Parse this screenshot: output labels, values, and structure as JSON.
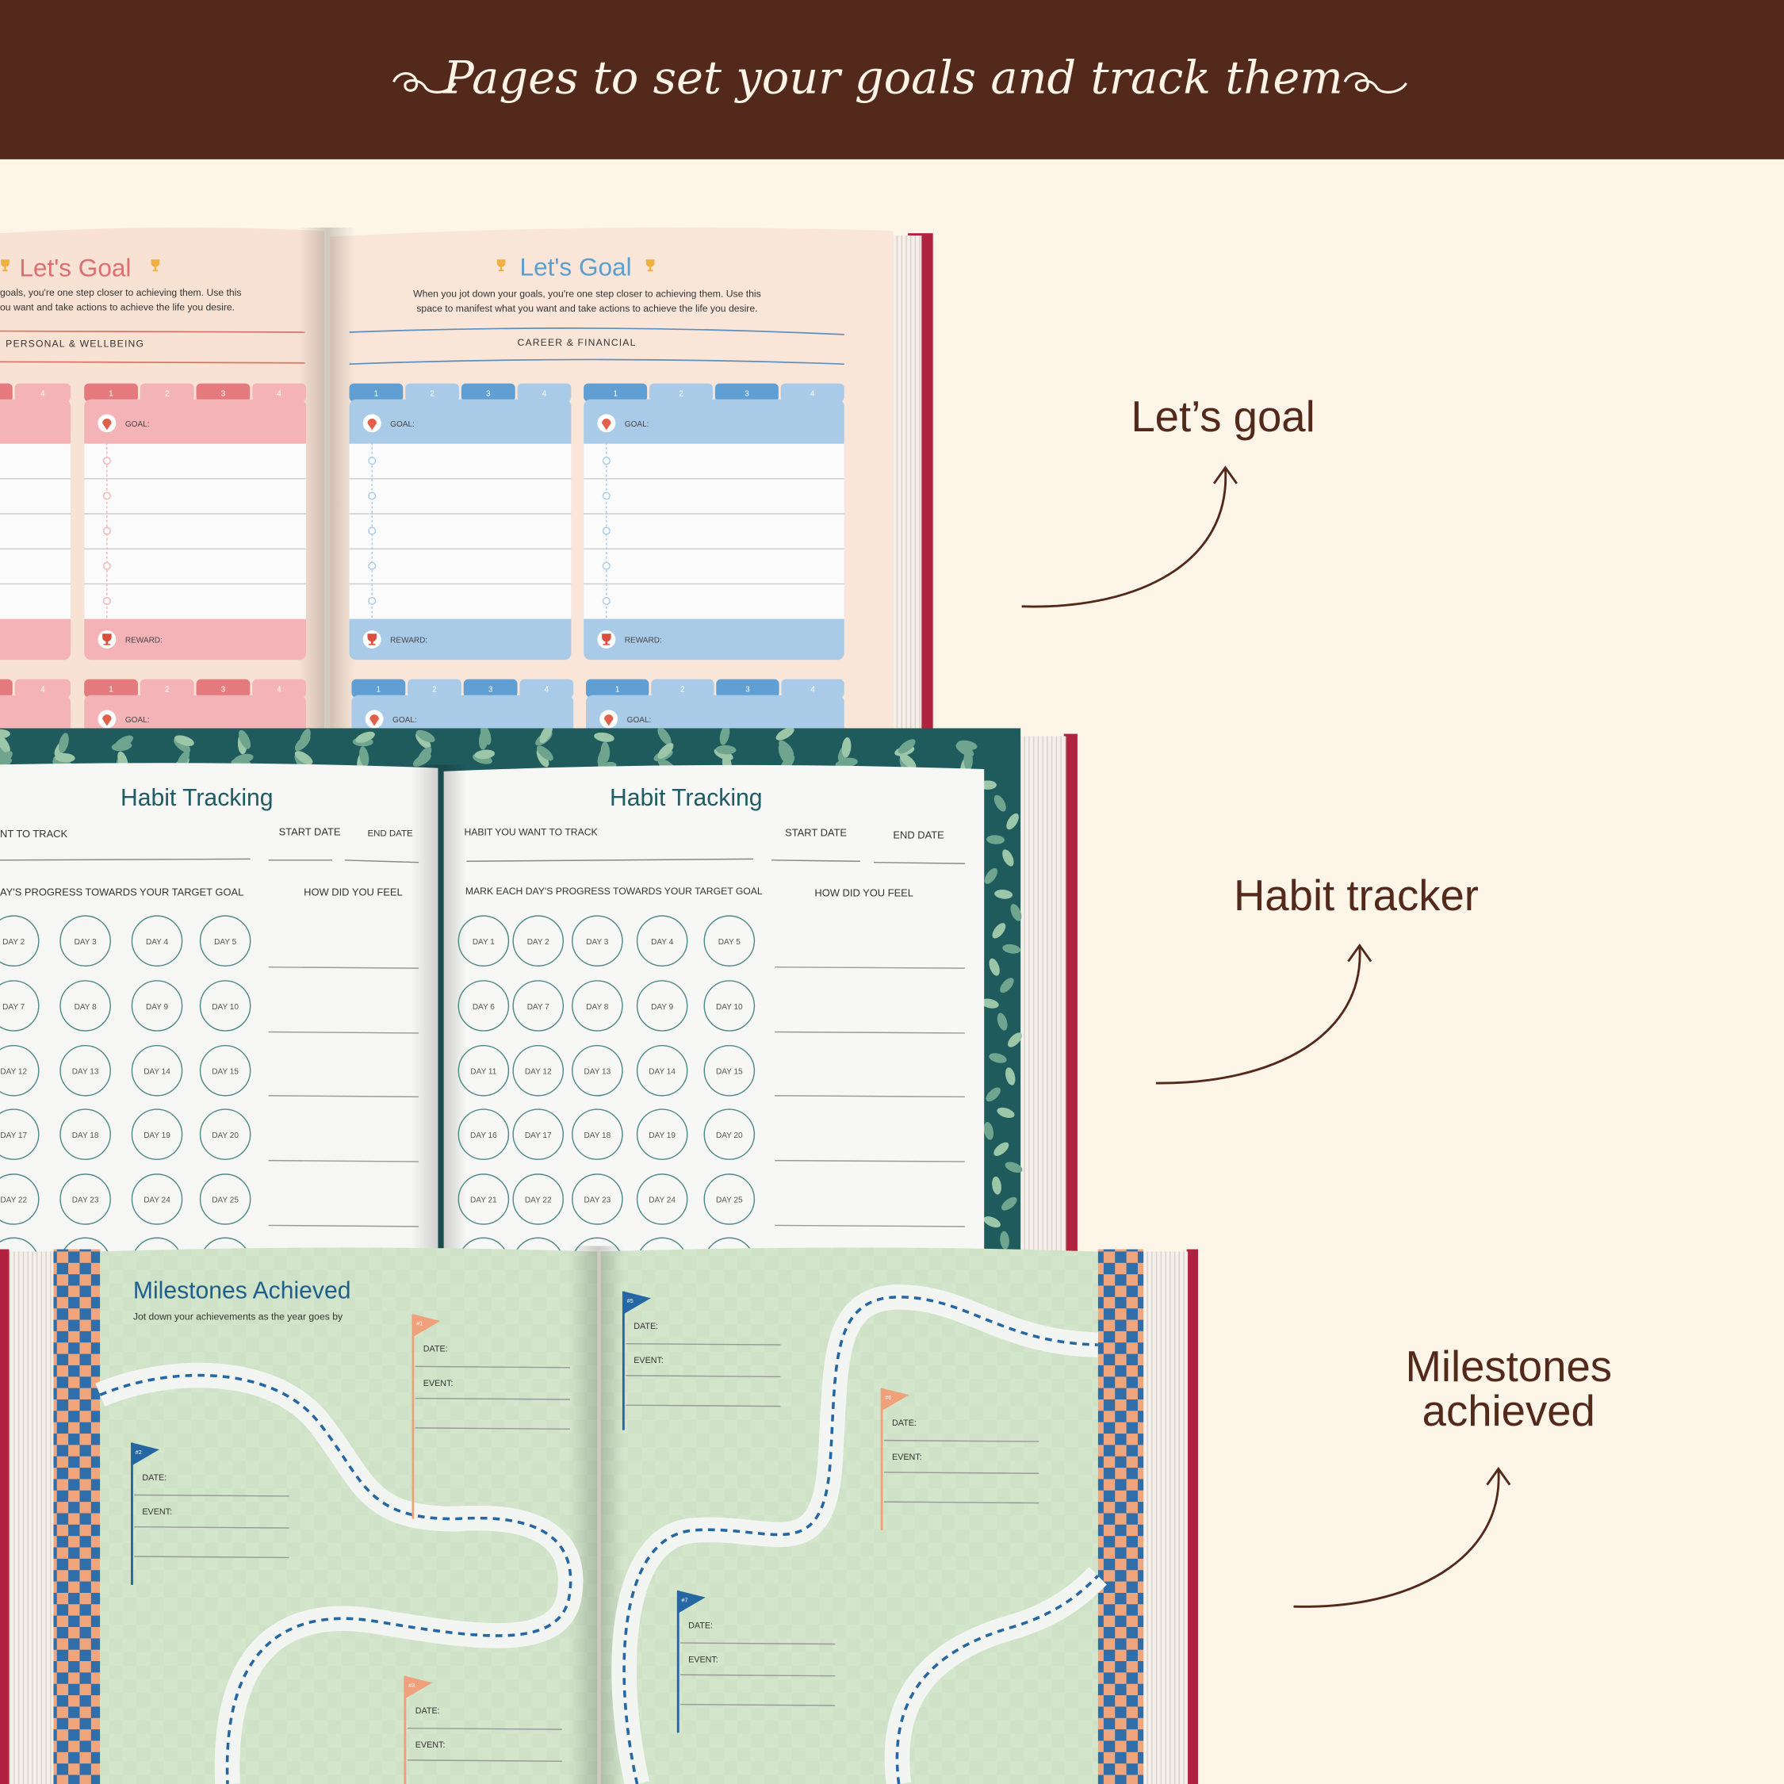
{
  "header": {
    "title": "Pages to set your goals and track them",
    "ornament_icon": "swirl-flourish-icon",
    "background": "#52291a"
  },
  "colors": {
    "background": "#fdf5e8",
    "brown": "#52291a",
    "cover_red": "#b0223f",
    "goal_pink": "#f4b3b6",
    "goal_pink_dark": "#e57a7e",
    "goal_blue": "#a9cbe8",
    "goal_blue_dark": "#5f9fd4",
    "habit_teal": "#1f5a5c",
    "milestone_green": "#d5e8cf",
    "milestone_blue": "#2467a3",
    "milestone_orange": "#f0a07a"
  },
  "feature_labels": {
    "lets_goal": "Let’s goal",
    "habit_tracker": "Habit tracker",
    "milestones_line1": "Milestones",
    "milestones_line2": "achieved",
    "arrow_icon": "curved-arrow-up-icon"
  },
  "goal_book": {
    "left_page": {
      "title": "Let's Goal",
      "desc_line1": "goals, you're one step closer to achieving them. Use this",
      "desc_line2": "ou want and take actions to achieve the life you desire.",
      "category": "PERSONAL & WELLBEING"
    },
    "right_page": {
      "title": "Let's Goal",
      "desc_line1": "When you jot down your goals, you're one step closer to achieving them. Use this",
      "desc_line2": "space to manifest what you want and take actions to achieve the life you desire.",
      "category": "CAREER & FINANCIAL"
    },
    "goal_label": "GOAL:",
    "reward_label": "REWARD:",
    "tabs": [
      "1",
      "2",
      "3",
      "4"
    ]
  },
  "habit_book": {
    "left_page": {
      "title": "Habit Tracking",
      "habit_label": "NT TO TRACK",
      "start_label": "START DATE",
      "end_label": "END DATE",
      "progress_label": "AY'S PROGRESS TOWARDS YOUR TARGET GOAL",
      "feel_label": "HOW DID YOU FEEL",
      "days": [
        "DAY 2",
        "DAY 3",
        "DAY 4",
        "DAY 5",
        "DAY 7",
        "DAY 8",
        "DAY 9",
        "DAY 10",
        "DAY 12",
        "DAY 13",
        "DAY 14",
        "DAY 15",
        "DAY 17",
        "DAY 18",
        "DAY 19",
        "DAY 20",
        "DAY 22",
        "DAY 23",
        "DAY 24",
        "DAY 25"
      ]
    },
    "right_page": {
      "title": "Habit Tracking",
      "habit_label": "HABIT YOU WANT TO TRACK",
      "start_label": "START DATE",
      "end_label": "END DATE",
      "progress_label": "MARK EACH DAY'S PROGRESS TOWARDS YOUR TARGET GOAL",
      "feel_label": "HOW DID YOU FEEL",
      "days": [
        "DAY 1",
        "DAY 2",
        "DAY 3",
        "DAY 4",
        "DAY 5",
        "DAY 6",
        "DAY 7",
        "DAY 8",
        "DAY 9",
        "DAY 10",
        "DAY 11",
        "DAY 12",
        "DAY 13",
        "DAY 14",
        "DAY 15",
        "DAY 16",
        "DAY 17",
        "DAY 18",
        "DAY 19",
        "DAY 20",
        "DAY 21",
        "DAY 22",
        "DAY 23",
        "DAY 24",
        "DAY 25"
      ]
    }
  },
  "milestone_book": {
    "title": "Milestones Achieved",
    "subtitle": "Jot down your achievements as the year goes by",
    "date_label": "DATE:",
    "event_label": "EVENT:",
    "flags": [
      {
        "num": "#1",
        "color": "orange"
      },
      {
        "num": "#2",
        "color": "blue"
      },
      {
        "num": "#3",
        "color": "orange"
      },
      {
        "num": "#5",
        "color": "blue"
      },
      {
        "num": "#6",
        "color": "orange"
      },
      {
        "num": "#7",
        "color": "blue"
      }
    ]
  }
}
